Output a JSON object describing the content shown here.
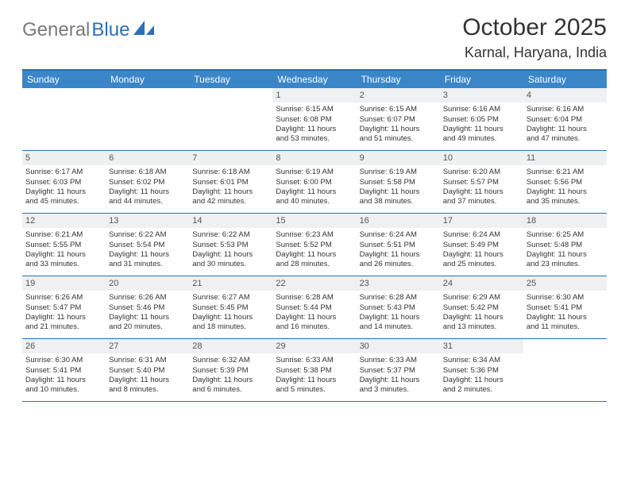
{
  "logo": {
    "part1": "General",
    "part2": "Blue"
  },
  "title": "October 2025",
  "location": "Karnal, Haryana, India",
  "colors": {
    "brand_blue": "#2c6fb5",
    "header_blue": "#3a86c8",
    "daynum_bg": "#eef0f2",
    "text": "#333333",
    "logo_gray": "#7a7a7a"
  },
  "days_of_week": [
    "Sunday",
    "Monday",
    "Tuesday",
    "Wednesday",
    "Thursday",
    "Friday",
    "Saturday"
  ],
  "weeks": [
    [
      {
        "n": "",
        "empty": true
      },
      {
        "n": "",
        "empty": true
      },
      {
        "n": "",
        "empty": true
      },
      {
        "n": "1",
        "sunrise": "Sunrise: 6:15 AM",
        "sunset": "Sunset: 6:08 PM",
        "day1": "Daylight: 11 hours",
        "day2": "and 53 minutes."
      },
      {
        "n": "2",
        "sunrise": "Sunrise: 6:15 AM",
        "sunset": "Sunset: 6:07 PM",
        "day1": "Daylight: 11 hours",
        "day2": "and 51 minutes."
      },
      {
        "n": "3",
        "sunrise": "Sunrise: 6:16 AM",
        "sunset": "Sunset: 6:05 PM",
        "day1": "Daylight: 11 hours",
        "day2": "and 49 minutes."
      },
      {
        "n": "4",
        "sunrise": "Sunrise: 6:16 AM",
        "sunset": "Sunset: 6:04 PM",
        "day1": "Daylight: 11 hours",
        "day2": "and 47 minutes."
      }
    ],
    [
      {
        "n": "5",
        "sunrise": "Sunrise: 6:17 AM",
        "sunset": "Sunset: 6:03 PM",
        "day1": "Daylight: 11 hours",
        "day2": "and 45 minutes."
      },
      {
        "n": "6",
        "sunrise": "Sunrise: 6:18 AM",
        "sunset": "Sunset: 6:02 PM",
        "day1": "Daylight: 11 hours",
        "day2": "and 44 minutes."
      },
      {
        "n": "7",
        "sunrise": "Sunrise: 6:18 AM",
        "sunset": "Sunset: 6:01 PM",
        "day1": "Daylight: 11 hours",
        "day2": "and 42 minutes."
      },
      {
        "n": "8",
        "sunrise": "Sunrise: 6:19 AM",
        "sunset": "Sunset: 6:00 PM",
        "day1": "Daylight: 11 hours",
        "day2": "and 40 minutes."
      },
      {
        "n": "9",
        "sunrise": "Sunrise: 6:19 AM",
        "sunset": "Sunset: 5:58 PM",
        "day1": "Daylight: 11 hours",
        "day2": "and 38 minutes."
      },
      {
        "n": "10",
        "sunrise": "Sunrise: 6:20 AM",
        "sunset": "Sunset: 5:57 PM",
        "day1": "Daylight: 11 hours",
        "day2": "and 37 minutes."
      },
      {
        "n": "11",
        "sunrise": "Sunrise: 6:21 AM",
        "sunset": "Sunset: 5:56 PM",
        "day1": "Daylight: 11 hours",
        "day2": "and 35 minutes."
      }
    ],
    [
      {
        "n": "12",
        "sunrise": "Sunrise: 6:21 AM",
        "sunset": "Sunset: 5:55 PM",
        "day1": "Daylight: 11 hours",
        "day2": "and 33 minutes."
      },
      {
        "n": "13",
        "sunrise": "Sunrise: 6:22 AM",
        "sunset": "Sunset: 5:54 PM",
        "day1": "Daylight: 11 hours",
        "day2": "and 31 minutes."
      },
      {
        "n": "14",
        "sunrise": "Sunrise: 6:22 AM",
        "sunset": "Sunset: 5:53 PM",
        "day1": "Daylight: 11 hours",
        "day2": "and 30 minutes."
      },
      {
        "n": "15",
        "sunrise": "Sunrise: 6:23 AM",
        "sunset": "Sunset: 5:52 PM",
        "day1": "Daylight: 11 hours",
        "day2": "and 28 minutes."
      },
      {
        "n": "16",
        "sunrise": "Sunrise: 6:24 AM",
        "sunset": "Sunset: 5:51 PM",
        "day1": "Daylight: 11 hours",
        "day2": "and 26 minutes."
      },
      {
        "n": "17",
        "sunrise": "Sunrise: 6:24 AM",
        "sunset": "Sunset: 5:49 PM",
        "day1": "Daylight: 11 hours",
        "day2": "and 25 minutes."
      },
      {
        "n": "18",
        "sunrise": "Sunrise: 6:25 AM",
        "sunset": "Sunset: 5:48 PM",
        "day1": "Daylight: 11 hours",
        "day2": "and 23 minutes."
      }
    ],
    [
      {
        "n": "19",
        "sunrise": "Sunrise: 6:26 AM",
        "sunset": "Sunset: 5:47 PM",
        "day1": "Daylight: 11 hours",
        "day2": "and 21 minutes."
      },
      {
        "n": "20",
        "sunrise": "Sunrise: 6:26 AM",
        "sunset": "Sunset: 5:46 PM",
        "day1": "Daylight: 11 hours",
        "day2": "and 20 minutes."
      },
      {
        "n": "21",
        "sunrise": "Sunrise: 6:27 AM",
        "sunset": "Sunset: 5:45 PM",
        "day1": "Daylight: 11 hours",
        "day2": "and 18 minutes."
      },
      {
        "n": "22",
        "sunrise": "Sunrise: 6:28 AM",
        "sunset": "Sunset: 5:44 PM",
        "day1": "Daylight: 11 hours",
        "day2": "and 16 minutes."
      },
      {
        "n": "23",
        "sunrise": "Sunrise: 6:28 AM",
        "sunset": "Sunset: 5:43 PM",
        "day1": "Daylight: 11 hours",
        "day2": "and 14 minutes."
      },
      {
        "n": "24",
        "sunrise": "Sunrise: 6:29 AM",
        "sunset": "Sunset: 5:42 PM",
        "day1": "Daylight: 11 hours",
        "day2": "and 13 minutes."
      },
      {
        "n": "25",
        "sunrise": "Sunrise: 6:30 AM",
        "sunset": "Sunset: 5:41 PM",
        "day1": "Daylight: 11 hours",
        "day2": "and 11 minutes."
      }
    ],
    [
      {
        "n": "26",
        "sunrise": "Sunrise: 6:30 AM",
        "sunset": "Sunset: 5:41 PM",
        "day1": "Daylight: 11 hours",
        "day2": "and 10 minutes."
      },
      {
        "n": "27",
        "sunrise": "Sunrise: 6:31 AM",
        "sunset": "Sunset: 5:40 PM",
        "day1": "Daylight: 11 hours",
        "day2": "and 8 minutes."
      },
      {
        "n": "28",
        "sunrise": "Sunrise: 6:32 AM",
        "sunset": "Sunset: 5:39 PM",
        "day1": "Daylight: 11 hours",
        "day2": "and 6 minutes."
      },
      {
        "n": "29",
        "sunrise": "Sunrise: 6:33 AM",
        "sunset": "Sunset: 5:38 PM",
        "day1": "Daylight: 11 hours",
        "day2": "and 5 minutes."
      },
      {
        "n": "30",
        "sunrise": "Sunrise: 6:33 AM",
        "sunset": "Sunset: 5:37 PM",
        "day1": "Daylight: 11 hours",
        "day2": "and 3 minutes."
      },
      {
        "n": "31",
        "sunrise": "Sunrise: 6:34 AM",
        "sunset": "Sunset: 5:36 PM",
        "day1": "Daylight: 11 hours",
        "day2": "and 2 minutes."
      },
      {
        "n": "",
        "empty": true
      }
    ]
  ]
}
